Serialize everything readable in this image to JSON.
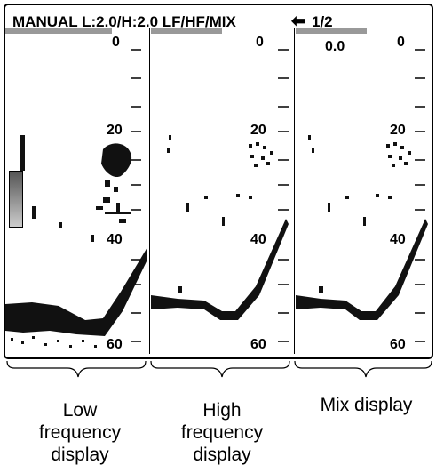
{
  "header": {
    "mode_text": "MANUAL L:2.0/H:2.0 LF/HF/MIX",
    "arrow_icon": "left-arrow-icon",
    "page_text": "1/2"
  },
  "panels": [
    {
      "name": "low",
      "depth_labels": {
        "top": "0",
        "mid": "20",
        "lower": "40",
        "bottom": "60"
      }
    },
    {
      "name": "high",
      "depth_labels": {
        "top": "0",
        "mid": "20",
        "lower": "40",
        "bottom": "60"
      }
    },
    {
      "name": "mix",
      "offset_text": "0.0",
      "depth_labels": {
        "top": "0",
        "mid": "20",
        "lower": "40",
        "bottom": "60"
      }
    }
  ],
  "captions": {
    "low": [
      "Low",
      "frequency",
      "display"
    ],
    "high": [
      "High",
      "frequency",
      "display"
    ],
    "mix": [
      "Mix display"
    ]
  },
  "colors": {
    "echo": "#111111",
    "range_bar": "#999999",
    "border": "#000000"
  }
}
